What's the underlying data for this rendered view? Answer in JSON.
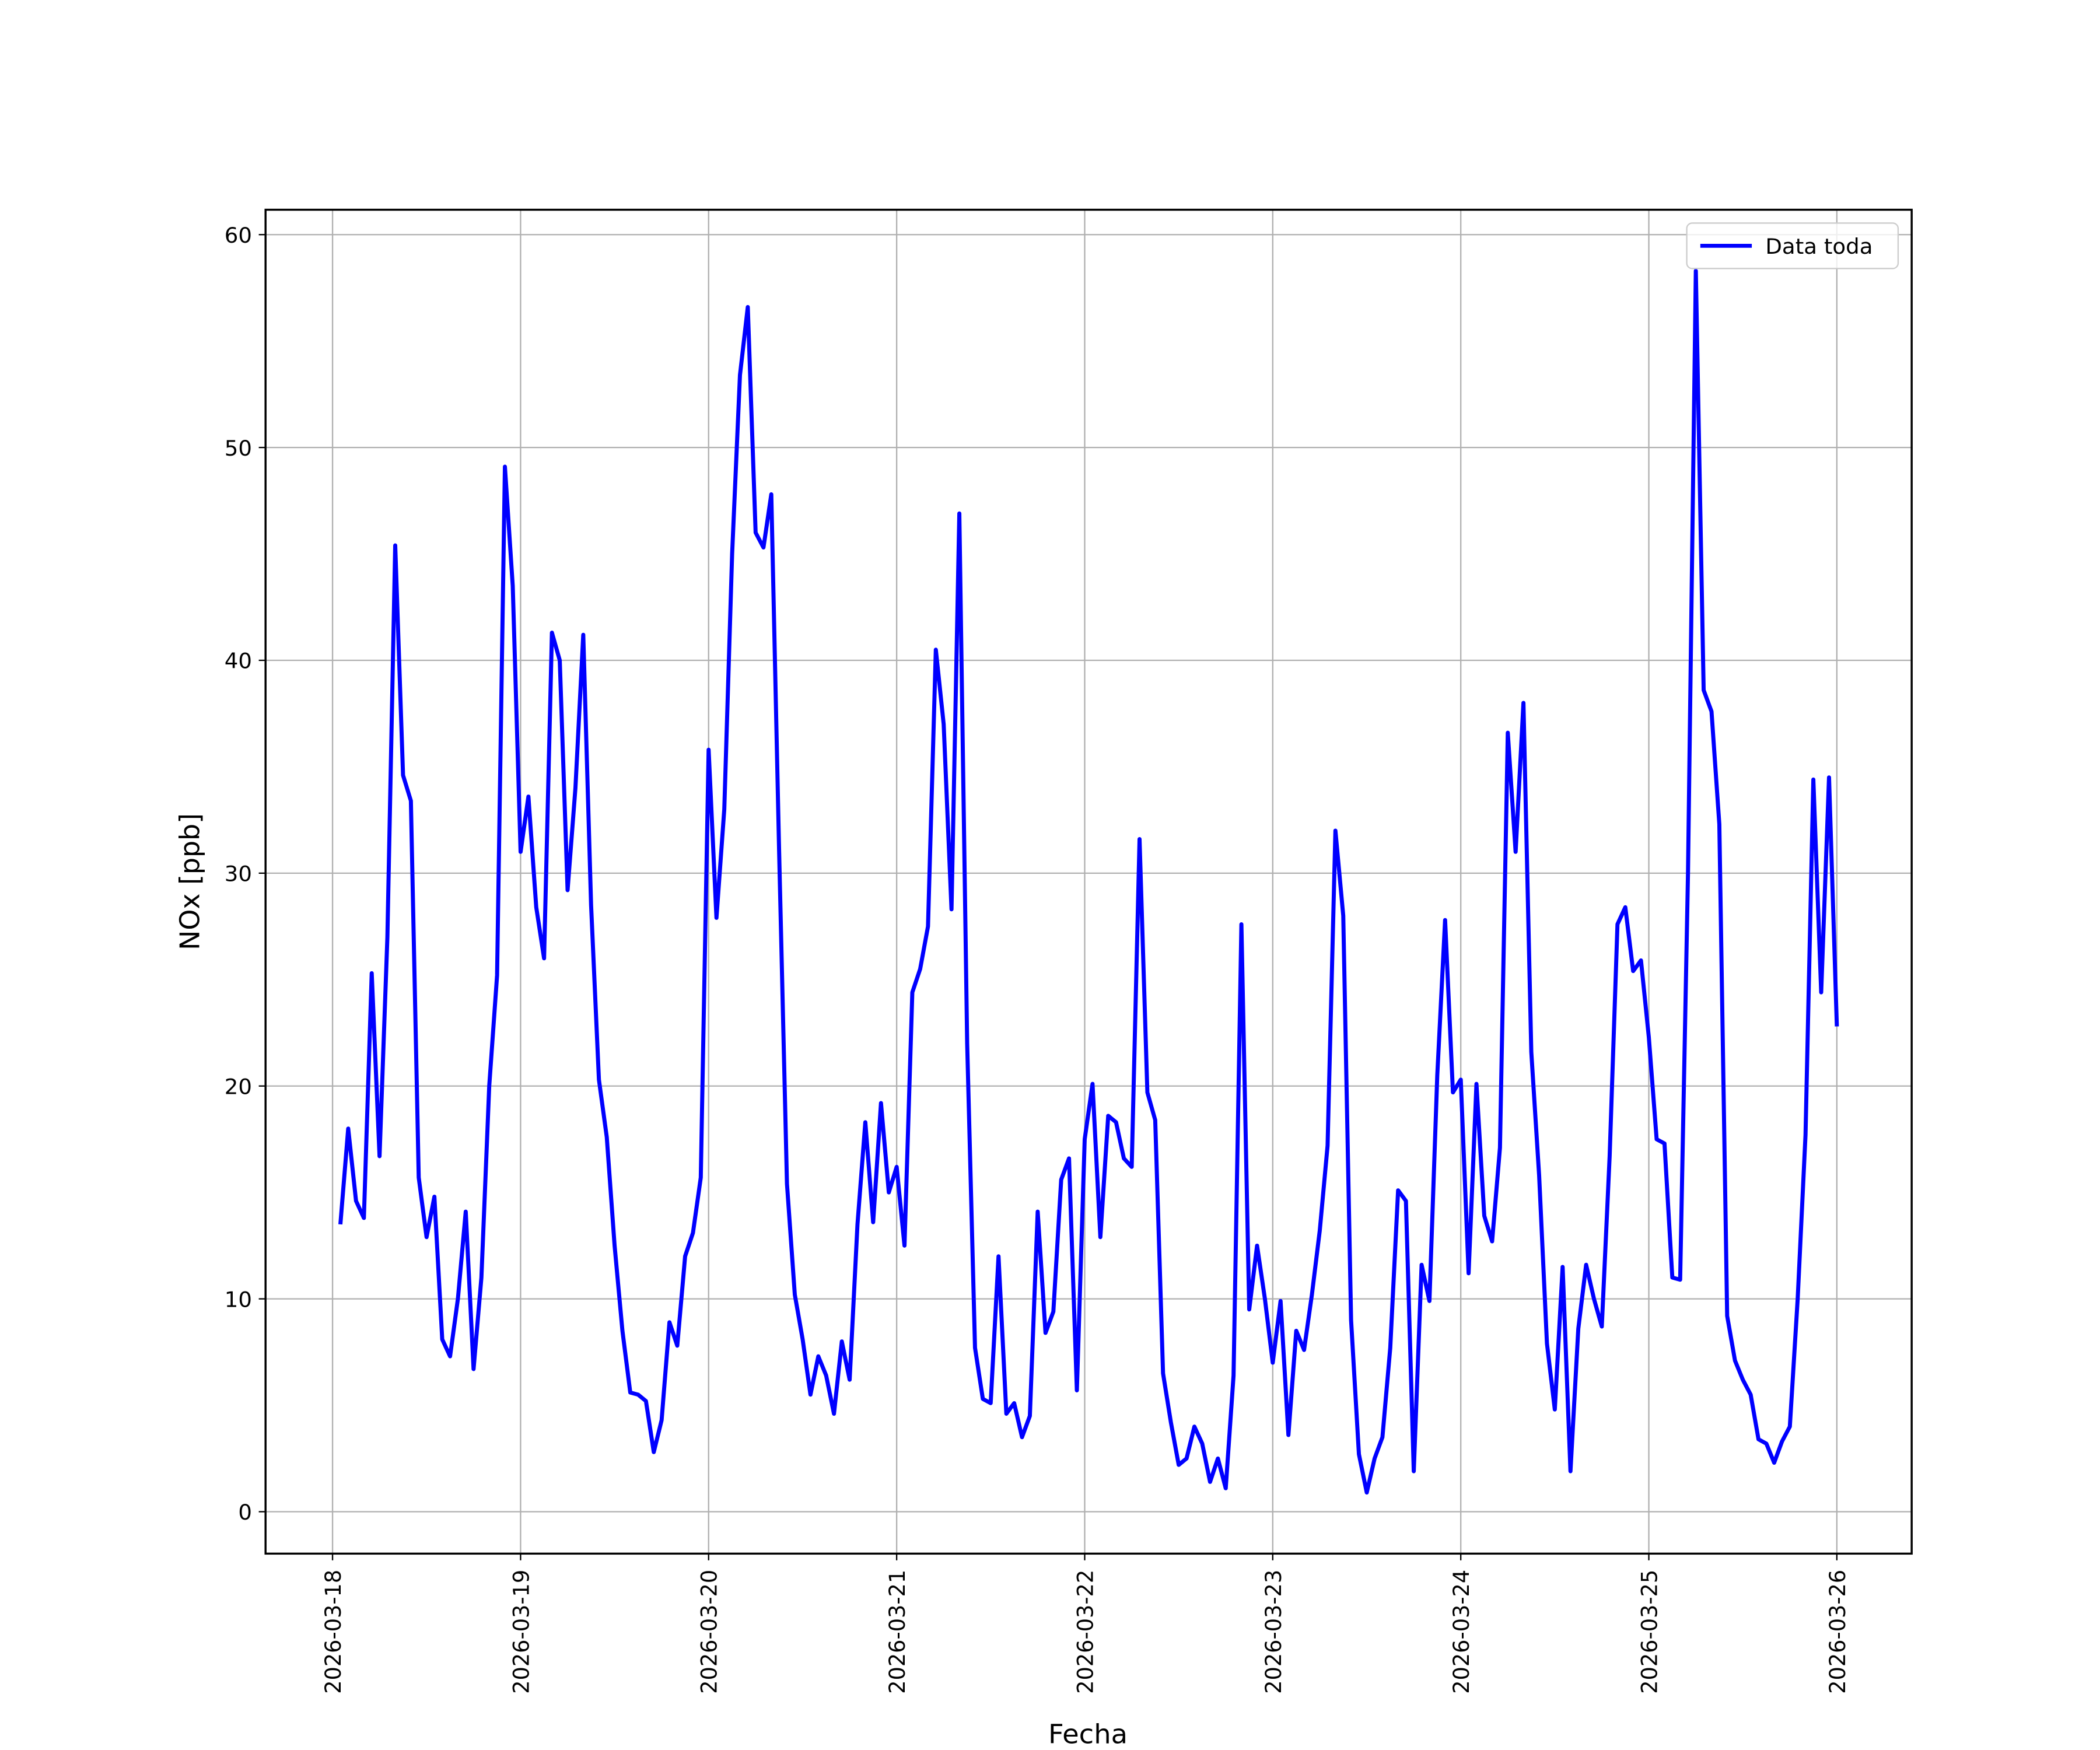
{
  "chart_data": {
    "type": "line",
    "xlabel": "Fecha",
    "ylabel": "NOx [ppb]",
    "x": [
      "2026-03-18T01:00",
      "2026-03-18T02:00",
      "2026-03-18T03:00",
      "2026-03-18T04:00",
      "2026-03-18T05:00",
      "2026-03-18T06:00",
      "2026-03-18T07:00",
      "2026-03-18T08:00",
      "2026-03-18T09:00",
      "2026-03-18T10:00",
      "2026-03-18T11:00",
      "2026-03-18T12:00",
      "2026-03-18T13:00",
      "2026-03-18T14:00",
      "2026-03-18T15:00",
      "2026-03-18T16:00",
      "2026-03-18T17:00",
      "2026-03-18T18:00",
      "2026-03-18T19:00",
      "2026-03-18T20:00",
      "2026-03-18T21:00",
      "2026-03-18T22:00",
      "2026-03-18T23:00",
      "2026-03-19T00:00",
      "2026-03-19T01:00",
      "2026-03-19T02:00",
      "2026-03-19T03:00",
      "2026-03-19T04:00",
      "2026-03-19T05:00",
      "2026-03-19T06:00",
      "2026-03-19T07:00",
      "2026-03-19T08:00",
      "2026-03-19T09:00",
      "2026-03-19T10:00",
      "2026-03-19T11:00",
      "2026-03-19T12:00",
      "2026-03-19T13:00",
      "2026-03-19T14:00",
      "2026-03-19T15:00",
      "2026-03-19T16:00",
      "2026-03-19T17:00",
      "2026-03-19T18:00",
      "2026-03-19T19:00",
      "2026-03-19T20:00",
      "2026-03-19T21:00",
      "2026-03-19T22:00",
      "2026-03-19T23:00",
      "2026-03-20T00:00",
      "2026-03-20T01:00",
      "2026-03-20T02:00",
      "2026-03-20T03:00",
      "2026-03-20T04:00",
      "2026-03-20T05:00",
      "2026-03-20T06:00",
      "2026-03-20T07:00",
      "2026-03-20T08:00",
      "2026-03-20T09:00",
      "2026-03-20T10:00",
      "2026-03-20T11:00",
      "2026-03-20T12:00",
      "2026-03-20T13:00",
      "2026-03-20T14:00",
      "2026-03-20T15:00",
      "2026-03-20T16:00",
      "2026-03-20T17:00",
      "2026-03-20T18:00",
      "2026-03-20T19:00",
      "2026-03-20T20:00",
      "2026-03-20T21:00",
      "2026-03-20T22:00",
      "2026-03-20T23:00",
      "2026-03-21T00:00",
      "2026-03-21T01:00",
      "2026-03-21T02:00",
      "2026-03-21T03:00",
      "2026-03-21T04:00",
      "2026-03-21T05:00",
      "2026-03-21T06:00",
      "2026-03-21T07:00",
      "2026-03-21T08:00",
      "2026-03-21T09:00",
      "2026-03-21T10:00",
      "2026-03-21T11:00",
      "2026-03-21T12:00",
      "2026-03-21T13:00",
      "2026-03-21T14:00",
      "2026-03-21T15:00",
      "2026-03-21T16:00",
      "2026-03-21T17:00",
      "2026-03-21T18:00",
      "2026-03-21T19:00",
      "2026-03-21T20:00",
      "2026-03-21T21:00",
      "2026-03-21T22:00",
      "2026-03-21T23:00",
      "2026-03-22T00:00",
      "2026-03-22T01:00",
      "2026-03-22T02:00",
      "2026-03-22T03:00",
      "2026-03-22T04:00",
      "2026-03-22T05:00",
      "2026-03-22T06:00",
      "2026-03-22T07:00",
      "2026-03-22T08:00",
      "2026-03-22T09:00",
      "2026-03-22T10:00",
      "2026-03-22T11:00",
      "2026-03-22T12:00",
      "2026-03-22T13:00",
      "2026-03-22T14:00",
      "2026-03-22T15:00",
      "2026-03-22T16:00",
      "2026-03-22T17:00",
      "2026-03-22T18:00",
      "2026-03-22T19:00",
      "2026-03-22T20:00",
      "2026-03-22T21:00",
      "2026-03-22T22:00",
      "2026-03-22T23:00",
      "2026-03-23T00:00",
      "2026-03-23T01:00",
      "2026-03-23T02:00",
      "2026-03-23T03:00",
      "2026-03-23T04:00",
      "2026-03-23T05:00",
      "2026-03-23T06:00",
      "2026-03-23T07:00",
      "2026-03-23T08:00",
      "2026-03-23T09:00",
      "2026-03-23T10:00",
      "2026-03-23T11:00",
      "2026-03-23T12:00",
      "2026-03-23T13:00",
      "2026-03-23T14:00",
      "2026-03-23T15:00",
      "2026-03-23T16:00",
      "2026-03-23T17:00",
      "2026-03-23T18:00",
      "2026-03-23T19:00",
      "2026-03-23T20:00",
      "2026-03-23T21:00",
      "2026-03-23T22:00",
      "2026-03-23T23:00",
      "2026-03-24T00:00",
      "2026-03-24T01:00",
      "2026-03-24T02:00",
      "2026-03-24T03:00",
      "2026-03-24T04:00",
      "2026-03-24T05:00",
      "2026-03-24T06:00",
      "2026-03-24T07:00",
      "2026-03-24T08:00",
      "2026-03-24T09:00",
      "2026-03-24T10:00",
      "2026-03-24T11:00",
      "2026-03-24T12:00",
      "2026-03-24T13:00",
      "2026-03-24T14:00",
      "2026-03-24T15:00",
      "2026-03-24T16:00",
      "2026-03-24T17:00",
      "2026-03-24T18:00",
      "2026-03-24T19:00",
      "2026-03-24T20:00",
      "2026-03-24T21:00",
      "2026-03-24T22:00",
      "2026-03-24T23:00",
      "2026-03-25T00:00",
      "2026-03-25T01:00",
      "2026-03-25T02:00",
      "2026-03-25T03:00",
      "2026-03-25T04:00",
      "2026-03-25T05:00",
      "2026-03-25T06:00",
      "2026-03-25T07:00",
      "2026-03-25T08:00",
      "2026-03-25T09:00",
      "2026-03-25T10:00",
      "2026-03-25T11:00",
      "2026-03-25T12:00",
      "2026-03-25T13:00",
      "2026-03-25T14:00",
      "2026-03-25T15:00",
      "2026-03-25T16:00",
      "2026-03-25T17:00",
      "2026-03-25T18:00",
      "2026-03-25T19:00",
      "2026-03-25T20:00",
      "2026-03-25T21:00",
      "2026-03-25T22:00",
      "2026-03-25T23:00",
      "2026-03-26T00:00"
    ],
    "series": [
      {
        "name": "Data toda",
        "color": "#0000ff",
        "values": [
          13.5,
          18,
          14.6,
          13.8,
          25.3,
          16.7,
          27,
          45.4,
          34.6,
          33.4,
          15.7,
          12.9,
          14.8,
          8.1,
          7.3,
          10,
          14.1,
          6.7,
          11,
          20,
          25.2,
          49.1,
          43.5,
          31,
          33.6,
          28.4,
          26,
          41.3,
          40,
          29.2,
          34,
          41.2,
          28.5,
          20.3,
          17.6,
          12.5,
          8.5,
          5.6,
          5.5,
          5.2,
          2.8,
          4.3,
          8.9,
          7.8,
          12,
          13.1,
          15.7,
          35.8,
          27.9,
          33,
          45,
          53.4,
          56.6,
          46,
          45.3,
          47.8,
          31,
          15.4,
          10.2,
          8.1,
          5.5,
          7.3,
          6.4,
          4.6,
          8,
          6.2,
          13.5,
          18.3,
          13.6,
          19.2,
          15,
          16.2,
          12.5,
          24.4,
          25.5,
          27.5,
          40.5,
          37,
          28.3,
          46.9,
          22,
          7.7,
          5.3,
          5.1,
          12,
          4.6,
          5.1,
          3.5,
          4.5,
          14.1,
          8.4,
          9.4,
          15.6,
          16.6,
          5.7,
          17.5,
          20.1,
          12.9,
          18.6,
          18.3,
          16.6,
          16.2,
          31.6,
          19.7,
          18.4,
          6.5,
          4.2,
          2.2,
          2.5,
          4,
          3.2,
          1.4,
          2.5,
          1.1,
          6.4,
          27.6,
          9.5,
          12.5,
          10,
          7,
          9.9,
          3.6,
          8.5,
          7.6,
          10.2,
          13.2,
          17.2,
          32,
          28,
          9,
          2.7,
          0.9,
          2.5,
          3.5,
          7.7,
          15.1,
          14.6,
          1.9,
          11.6,
          9.9,
          20.5,
          27.8,
          19.7,
          20.3,
          11.2,
          20.1,
          13.9,
          12.7,
          17.1,
          36.6,
          31,
          38,
          21.6,
          15.8,
          7.9,
          4.8,
          11.5,
          1.9,
          8.6,
          11.6,
          10,
          8.7,
          16.7,
          27.6,
          28.4,
          25.4,
          25.9,
          22.3,
          17.5,
          17.3,
          11,
          10.9,
          30,
          58.3,
          38.6,
          37.6,
          32.3,
          9.2,
          7.1,
          6.2,
          5.5,
          3.4,
          3.2,
          2.3,
          3.3,
          4,
          10,
          17.7,
          34.4,
          24.4,
          34.5,
          22.8
        ]
      }
    ],
    "xlim": [
      "2026-03-17T15:27",
      "2026-03-26T09:33"
    ],
    "xticks": [
      "2026-03-18",
      "2026-03-19",
      "2026-03-20",
      "2026-03-21",
      "2026-03-22",
      "2026-03-23",
      "2026-03-24",
      "2026-03-25",
      "2026-03-26"
    ],
    "ylim": [
      -1.97,
      61.17
    ],
    "yticks": [
      0,
      10,
      20,
      30,
      40,
      50,
      60
    ],
    "grid": true,
    "legend": "upper right"
  }
}
